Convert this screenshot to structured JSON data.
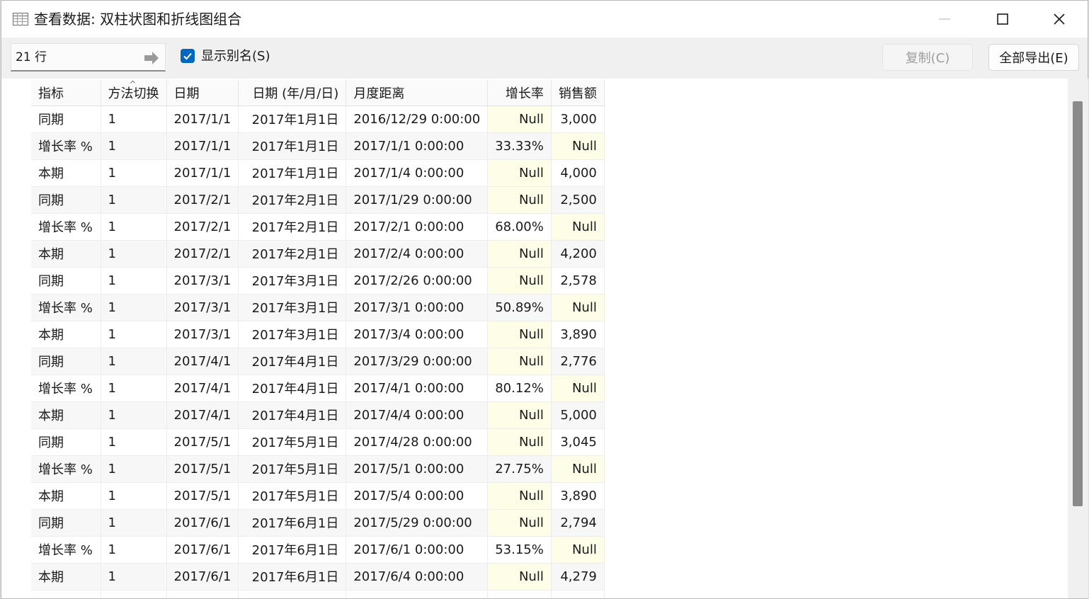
{
  "window": {
    "title": "查看数据: 双柱状图和折线图组合",
    "minimize_icon": "minimize-icon",
    "maximize_icon": "maximize-icon",
    "close_icon": "close-icon"
  },
  "toolbar": {
    "rows_value": "21 行",
    "show_alias_label": "显示别名(S)",
    "show_alias_checked": true,
    "copy_label": "复制(C)",
    "export_label": "全部导出(E)"
  },
  "table": {
    "headers": [
      "指标",
      "方法切换",
      "日期",
      "日期 (年/月/日)",
      "月度距离",
      "增长率",
      "销售额"
    ],
    "rows": [
      [
        "同期",
        "1",
        "2017/1/1",
        "2017年1月1日",
        "2016/12/29 0:00:00",
        "Null",
        "3,000"
      ],
      [
        "增长率 %",
        "1",
        "2017/1/1",
        "2017年1月1日",
        "2017/1/1 0:00:00",
        "33.33%",
        "Null"
      ],
      [
        "本期",
        "1",
        "2017/1/1",
        "2017年1月1日",
        "2017/1/4 0:00:00",
        "Null",
        "4,000"
      ],
      [
        "同期",
        "1",
        "2017/2/1",
        "2017年2月1日",
        "2017/1/29 0:00:00",
        "Null",
        "2,500"
      ],
      [
        "增长率 %",
        "1",
        "2017/2/1",
        "2017年2月1日",
        "2017/2/1 0:00:00",
        "68.00%",
        "Null"
      ],
      [
        "本期",
        "1",
        "2017/2/1",
        "2017年2月1日",
        "2017/2/4 0:00:00",
        "Null",
        "4,200"
      ],
      [
        "同期",
        "1",
        "2017/3/1",
        "2017年3月1日",
        "2017/2/26 0:00:00",
        "Null",
        "2,578"
      ],
      [
        "增长率 %",
        "1",
        "2017/3/1",
        "2017年3月1日",
        "2017/3/1 0:00:00",
        "50.89%",
        "Null"
      ],
      [
        "本期",
        "1",
        "2017/3/1",
        "2017年3月1日",
        "2017/3/4 0:00:00",
        "Null",
        "3,890"
      ],
      [
        "同期",
        "1",
        "2017/4/1",
        "2017年4月1日",
        "2017/3/29 0:00:00",
        "Null",
        "2,776"
      ],
      [
        "增长率 %",
        "1",
        "2017/4/1",
        "2017年4月1日",
        "2017/4/1 0:00:00",
        "80.12%",
        "Null"
      ],
      [
        "本期",
        "1",
        "2017/4/1",
        "2017年4月1日",
        "2017/4/4 0:00:00",
        "Null",
        "5,000"
      ],
      [
        "同期",
        "1",
        "2017/5/1",
        "2017年5月1日",
        "2017/4/28 0:00:00",
        "Null",
        "3,045"
      ],
      [
        "增长率 %",
        "1",
        "2017/5/1",
        "2017年5月1日",
        "2017/5/1 0:00:00",
        "27.75%",
        "Null"
      ],
      [
        "本期",
        "1",
        "2017/5/1",
        "2017年5月1日",
        "2017/5/4 0:00:00",
        "Null",
        "3,890"
      ],
      [
        "同期",
        "1",
        "2017/6/1",
        "2017年6月1日",
        "2017/5/29 0:00:00",
        "Null",
        "2,794"
      ],
      [
        "增长率 %",
        "1",
        "2017/6/1",
        "2017年6月1日",
        "2017/6/1 0:00:00",
        "53.15%",
        "Null"
      ],
      [
        "本期",
        "1",
        "2017/6/1",
        "2017年6月1日",
        "2017/6/4 0:00:00",
        "Null",
        "4,279"
      ],
      [
        "",
        "",
        "",
        "",
        "",
        "",
        ""
      ]
    ],
    "null_highlight": "#fdfde8"
  }
}
